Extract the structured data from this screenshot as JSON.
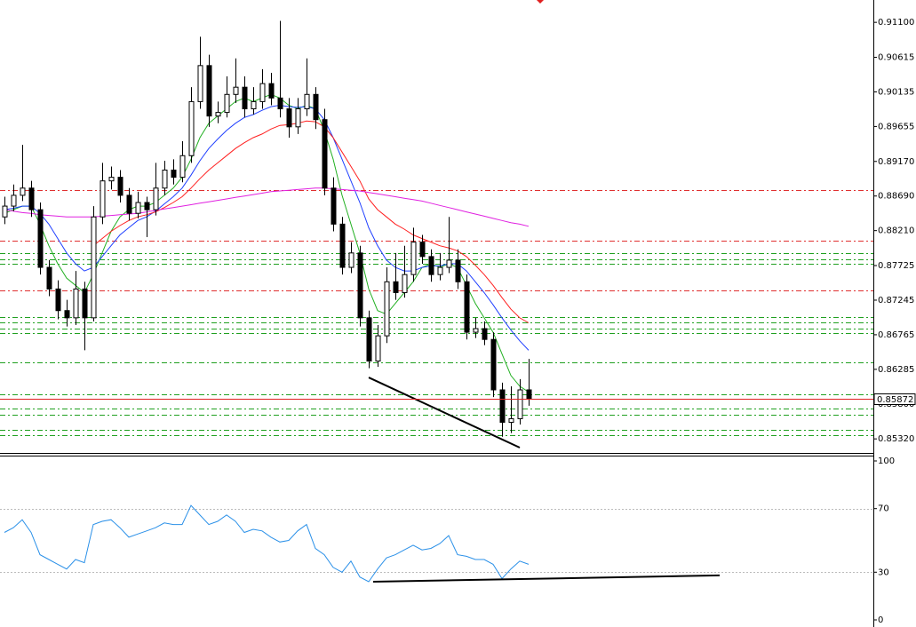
{
  "chart_data": [
    {
      "type": "candlestick",
      "open": [
        0.884,
        0.8855,
        0.887,
        0.888,
        0.885,
        0.877,
        0.874,
        0.871,
        0.87,
        0.874,
        0.87,
        0.884,
        0.889,
        0.8895,
        0.887,
        0.8845,
        0.886,
        0.885,
        0.888,
        0.8905,
        0.8895,
        0.8925,
        0.9,
        0.905,
        0.898,
        0.8985,
        0.901,
        0.902,
        0.899,
        0.9,
        0.9025,
        0.9005,
        0.899,
        0.8965,
        0.899,
        0.901,
        0.8975,
        0.888,
        0.883,
        0.877,
        0.879,
        0.87,
        0.864,
        0.8675,
        0.875,
        0.8735,
        0.876,
        0.8805,
        0.8785,
        0.876,
        0.877,
        0.878,
        0.875,
        0.868,
        0.8685,
        0.867,
        0.86,
        0.8555,
        0.856,
        0.86
      ],
      "high": [
        0.8868,
        0.8885,
        0.894,
        0.889,
        0.886,
        0.878,
        0.8752,
        0.8725,
        0.8765,
        0.875,
        0.8855,
        0.8915,
        0.891,
        0.8905,
        0.888,
        0.8875,
        0.8868,
        0.8915,
        0.8918,
        0.892,
        0.8945,
        0.902,
        0.909,
        0.9065,
        0.9,
        0.9035,
        0.906,
        0.9035,
        0.902,
        0.9045,
        0.904,
        0.9112,
        0.9005,
        0.9005,
        0.906,
        0.902,
        0.899,
        0.8895,
        0.884,
        0.8805,
        0.88,
        0.871,
        0.869,
        0.877,
        0.879,
        0.88,
        0.8825,
        0.8815,
        0.8795,
        0.879,
        0.884,
        0.8795,
        0.876,
        0.87,
        0.8695,
        0.868,
        0.861,
        0.8605,
        0.8615,
        0.8643
      ],
      "low": [
        0.883,
        0.8848,
        0.8862,
        0.884,
        0.876,
        0.873,
        0.8698,
        0.8688,
        0.869,
        0.8655,
        0.8695,
        0.883,
        0.8878,
        0.886,
        0.8835,
        0.8838,
        0.8812,
        0.8842,
        0.887,
        0.8885,
        0.8888,
        0.8915,
        0.899,
        0.8965,
        0.897,
        0.8978,
        0.8998,
        0.8978,
        0.8982,
        0.899,
        0.8995,
        0.8978,
        0.895,
        0.8955,
        0.898,
        0.8962,
        0.887,
        0.882,
        0.876,
        0.8762,
        0.8688,
        0.863,
        0.8632,
        0.8665,
        0.8725,
        0.8728,
        0.875,
        0.8775,
        0.875,
        0.8752,
        0.8762,
        0.874,
        0.867,
        0.8672,
        0.8662,
        0.859,
        0.8535,
        0.854,
        0.8552,
        0.8578
      ],
      "close": [
        0.8855,
        0.887,
        0.888,
        0.885,
        0.877,
        0.874,
        0.871,
        0.87,
        0.874,
        0.87,
        0.884,
        0.889,
        0.8895,
        0.887,
        0.8845,
        0.886,
        0.885,
        0.888,
        0.8905,
        0.8895,
        0.8925,
        0.9,
        0.905,
        0.898,
        0.8985,
        0.901,
        0.902,
        0.899,
        0.9,
        0.9025,
        0.9005,
        0.899,
        0.8965,
        0.899,
        0.901,
        0.8975,
        0.888,
        0.883,
        0.877,
        0.879,
        0.87,
        0.864,
        0.8675,
        0.875,
        0.8735,
        0.876,
        0.8805,
        0.8785,
        0.876,
        0.877,
        0.878,
        0.875,
        0.868,
        0.8685,
        0.867,
        0.86,
        0.8555,
        0.856,
        0.86,
        0.8587
      ],
      "series": [
        {
          "color": "#22b022",
          "values": [
            0.8845,
            0.885,
            0.8855,
            0.8855,
            0.883,
            0.88,
            0.8775,
            0.8755,
            0.8745,
            0.8735,
            0.876,
            0.879,
            0.882,
            0.884,
            0.885,
            0.8855,
            0.8855,
            0.886,
            0.887,
            0.888,
            0.8895,
            0.892,
            0.895,
            0.897,
            0.898,
            0.899,
            0.9,
            0.9005,
            0.9,
            0.9005,
            0.901,
            0.9005,
            0.8995,
            0.899,
            0.8995,
            0.899,
            0.896,
            0.892,
            0.887,
            0.883,
            0.879,
            0.874,
            0.871,
            0.8705,
            0.872,
            0.8735,
            0.875,
            0.877,
            0.8775,
            0.877,
            0.8775,
            0.877,
            0.8745,
            0.872,
            0.87,
            0.868,
            0.865,
            0.862,
            0.8605,
            0.8597
          ]
        },
        {
          "color": "#2040ff",
          "values": [
            0.885,
            0.8852,
            0.8855,
            0.8855,
            0.8845,
            0.883,
            0.881,
            0.879,
            0.8775,
            0.8765,
            0.877,
            0.8785,
            0.88,
            0.8815,
            0.8825,
            0.8835,
            0.884,
            0.8848,
            0.8858,
            0.8868,
            0.888,
            0.8898,
            0.8918,
            0.8935,
            0.8948,
            0.896,
            0.897,
            0.8978,
            0.8982,
            0.8988,
            0.8993,
            0.8995,
            0.8993,
            0.8992,
            0.8993,
            0.899,
            0.8975,
            0.895,
            0.892,
            0.889,
            0.886,
            0.8825,
            0.88,
            0.878,
            0.877,
            0.8765,
            0.8765,
            0.877,
            0.8772,
            0.8772,
            0.8775,
            0.8775,
            0.8765,
            0.875,
            0.8735,
            0.8718,
            0.87,
            0.8683,
            0.8668,
            0.8655
          ]
        },
        {
          "color": "#ff2020",
          "values": [
            null,
            null,
            null,
            null,
            null,
            null,
            null,
            null,
            null,
            null,
            0.88,
            0.881,
            0.882,
            0.8828,
            0.8835,
            0.884,
            0.8843,
            0.8847,
            0.8853,
            0.886,
            0.8868,
            0.888,
            0.8893,
            0.8905,
            0.8915,
            0.8925,
            0.8935,
            0.8943,
            0.895,
            0.8955,
            0.8962,
            0.8967,
            0.8968,
            0.897,
            0.8973,
            0.8972,
            0.8965,
            0.895,
            0.893,
            0.891,
            0.889,
            0.8865,
            0.885,
            0.884,
            0.883,
            0.8823,
            0.8815,
            0.881,
            0.8805,
            0.88,
            0.8797,
            0.8793,
            0.8785,
            0.8773,
            0.876,
            0.8745,
            0.8728,
            0.8712,
            0.87,
            0.8693
          ]
        },
        {
          "color": "#e020e0",
          "values": [
            0.885,
            0.8848,
            0.8846,
            0.8845,
            0.8843,
            0.8842,
            0.8841,
            0.884,
            0.884,
            0.884,
            0.884,
            0.8841,
            0.8842,
            0.8843,
            0.8844,
            0.8845,
            0.8847,
            0.8849,
            0.8851,
            0.8853,
            0.8855,
            0.8857,
            0.8859,
            0.8861,
            0.8863,
            0.8865,
            0.8867,
            0.8869,
            0.8871,
            0.8873,
            0.8875,
            0.8876,
            0.8877,
            0.8878,
            0.8879,
            0.888,
            0.888,
            0.8879,
            0.8878,
            0.8877,
            0.8876,
            0.8874,
            0.8872,
            0.887,
            0.8868,
            0.8866,
            0.8864,
            0.8862,
            0.8859,
            0.8856,
            0.8853,
            0.885,
            0.8847,
            0.8844,
            0.8841,
            0.8838,
            0.8835,
            0.8832,
            0.883,
            0.8827
          ]
        }
      ],
      "levels": [
        {
          "value": 0.8877,
          "color": "#e03030"
        },
        {
          "value": 0.8807,
          "color": "#e03030"
        },
        {
          "value": 0.8738,
          "color": "#e03030"
        },
        {
          "value": 0.879,
          "color": "#20a020"
        },
        {
          "value": 0.8781,
          "color": "#20a020"
        },
        {
          "value": 0.8775,
          "color": "#20a020"
        },
        {
          "value": 0.8701,
          "color": "#20a020"
        },
        {
          "value": 0.8694,
          "color": "#20a020"
        },
        {
          "value": 0.8685,
          "color": "#20a020"
        },
        {
          "value": 0.8679,
          "color": "#20a020"
        },
        {
          "value": 0.8638,
          "color": "#20a020"
        },
        {
          "value": 0.8594,
          "color": "#20a020"
        },
        {
          "value": 0.8574,
          "color": "#20a020"
        },
        {
          "value": 0.8565,
          "color": "#20a020"
        },
        {
          "value": 0.8545,
          "color": "#20a020"
        },
        {
          "value": 0.8537,
          "color": "#20a020"
        }
      ],
      "current_price": {
        "value": 0.85872,
        "label": "0.85872"
      },
      "trendline": {
        "x": [
          41,
          58
        ],
        "y": [
          0.86172,
          0.85199
        ]
      },
      "ylim": [
        0.85125,
        0.9141
      ],
      "yticks": [
        {
          "value": 0.911,
          "label": "0.91100"
        },
        {
          "value": 0.90615,
          "label": "0.90615"
        },
        {
          "value": 0.90135,
          "label": "0.90135"
        },
        {
          "value": 0.89655,
          "label": "0.89655"
        },
        {
          "value": 0.8917,
          "label": "0.89170"
        },
        {
          "value": 0.8869,
          "label": "0.88690"
        },
        {
          "value": 0.8821,
          "label": "0.88210"
        },
        {
          "value": 0.87725,
          "label": "0.87725"
        },
        {
          "value": 0.87245,
          "label": "0.87245"
        },
        {
          "value": 0.86765,
          "label": "0.86765"
        },
        {
          "value": 0.86285,
          "label": "0.86285"
        },
        {
          "value": 0.858,
          "label": "0.85800"
        },
        {
          "value": 0.8532,
          "label": "0.85320"
        }
      ]
    },
    {
      "type": "line",
      "color": "#2a90e8",
      "values": [
        55,
        58,
        63,
        55,
        41,
        38,
        35,
        32,
        38,
        36,
        60,
        62,
        63,
        58,
        52,
        54,
        56,
        58,
        61,
        60,
        60,
        72,
        66,
        60,
        62,
        66,
        62,
        55,
        57,
        56,
        52,
        49,
        50,
        56,
        60,
        45,
        41,
        33,
        30,
        37,
        27,
        24,
        32,
        39,
        41,
        44,
        47,
        44,
        45,
        48,
        53,
        41,
        40,
        38,
        38,
        35,
        26,
        32,
        37,
        35
      ],
      "trendline": {
        "x": [
          41.5,
          80.5
        ],
        "y": [
          24,
          28
        ]
      },
      "ylim": [
        0,
        100
      ],
      "yticks": [
        0,
        30,
        70,
        100
      ],
      "grid_ticks": [
        30,
        70
      ]
    }
  ]
}
